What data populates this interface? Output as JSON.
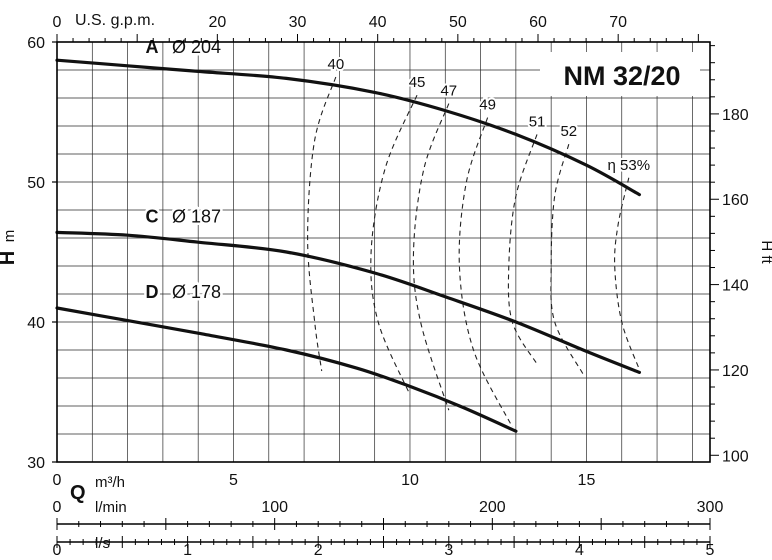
{
  "chart_data": {
    "type": "line",
    "title": "NM 32/20",
    "xlabel": "Q",
    "x_unit": "m³/h",
    "ylabel": "H",
    "y_unit": "m",
    "y2label": "H ft",
    "xlim": [
      0,
      18.5
    ],
    "ylim": [
      30,
      60
    ],
    "grid": true,
    "x_ticks": [
      0,
      5,
      10,
      15
    ],
    "y_ticks": [
      30,
      40,
      50,
      60
    ],
    "top_axis": {
      "label": "U.S. g.p.m.",
      "ticks": [
        0,
        20,
        30,
        40,
        50,
        60,
        70
      ]
    },
    "right_axis": {
      "label": "H ft",
      "ticks": [
        100,
        120,
        140,
        160,
        180
      ]
    },
    "bottom_axis_lmin": {
      "label": "l/min",
      "ticks": [
        0,
        100,
        200,
        300
      ]
    },
    "bottom_axis_ls": {
      "label": "l/s",
      "ticks": [
        0,
        1,
        2,
        3,
        4,
        5
      ]
    },
    "series": [
      {
        "name": "A",
        "diameter": "Ø 204",
        "x": [
          0,
          2,
          4,
          6.5,
          9,
          11,
          13,
          15,
          16.5
        ],
        "y": [
          58.7,
          58.3,
          57.9,
          57.4,
          56.4,
          55.1,
          53.4,
          51.2,
          49.1
        ]
      },
      {
        "name": "C",
        "diameter": "Ø 187",
        "x": [
          0,
          2,
          4,
          6.5,
          9,
          11,
          13,
          15,
          16.5
        ],
        "y": [
          46.4,
          46.2,
          45.7,
          45,
          43.5,
          41.8,
          40,
          37.9,
          36.4
        ]
      },
      {
        "name": "D",
        "diameter": "Ø 178",
        "x": [
          0,
          2,
          4,
          6.5,
          8.5,
          10,
          11.5,
          13
        ],
        "y": [
          41,
          40.1,
          39.2,
          38,
          36.7,
          35.4,
          33.9,
          32.2
        ]
      }
    ],
    "efficiency_curves": [
      {
        "label": "40",
        "x": [
          7.9,
          7.3,
          7.1,
          7.3,
          7.5
        ],
        "y": [
          57.5,
          53,
          46,
          40,
          36.5
        ]
      },
      {
        "label": "45",
        "x": [
          10.2,
          9.3,
          8.9,
          9.1,
          10
        ],
        "y": [
          56.2,
          51,
          45,
          40,
          34.8
        ]
      },
      {
        "label": "47",
        "x": [
          11.1,
          10.4,
          10.1,
          10.3,
          11.1
        ],
        "y": [
          55.6,
          51,
          45,
          40,
          33.7
        ]
      },
      {
        "label": "49",
        "x": [
          12.2,
          11.6,
          11.4,
          11.8,
          12.9
        ],
        "y": [
          54.6,
          50,
          44,
          38,
          32.5
        ]
      },
      {
        "label": "51",
        "x": [
          13.6,
          13,
          12.8,
          12.9,
          13.6
        ],
        "y": [
          53.4,
          49,
          44,
          40,
          37
        ]
      },
      {
        "label": "52",
        "x": [
          14.5,
          14.1,
          14,
          14.1,
          14.9
        ],
        "y": [
          52.7,
          49,
          44,
          40,
          36.3
        ]
      },
      {
        "label": "η 53%",
        "x": [
          16.2,
          15.9,
          15.8,
          16,
          16.5
        ],
        "y": [
          50.3,
          47,
          44,
          40,
          36.6
        ]
      }
    ]
  }
}
